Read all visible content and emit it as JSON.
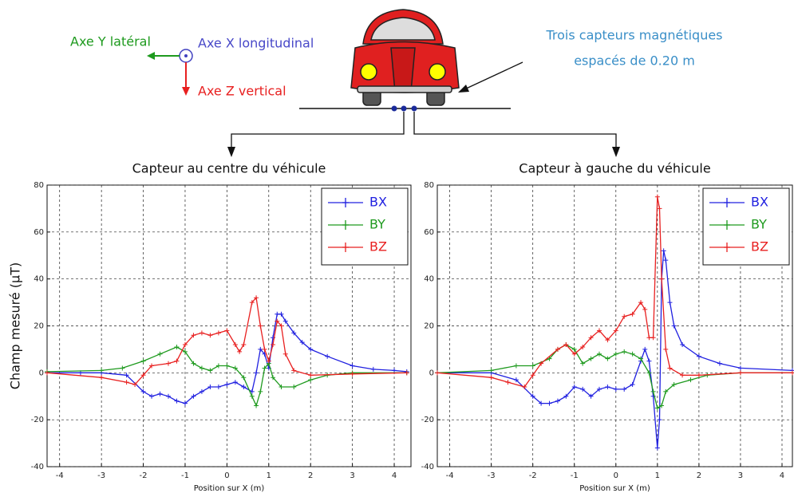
{
  "diagram": {
    "axis_y": "Axe Y latéral",
    "axis_x": "Axe X longitudinal",
    "axis_z": "Axe Z vertical",
    "note_line1": "Trois capteurs magnétiques",
    "note_line2": "espacés de 0.20 m"
  },
  "chart_data": [
    {
      "type": "line",
      "title": "Capteur au centre du véhicule",
      "x_label": "Position sur X (m)",
      "y_label": "Champ mesuré (µT)",
      "xlim": [
        -4.3,
        4.4
      ],
      "xticks": [
        -4,
        -3,
        -2,
        -1,
        0,
        1,
        2,
        3,
        4
      ],
      "ylim": [
        -40,
        80
      ],
      "yticks": [
        -40,
        -20,
        0,
        20,
        40,
        60,
        80
      ],
      "grid": true,
      "legend": "upper right",
      "series": [
        {
          "name": "BX",
          "color": "#2020e0",
          "x": [
            -4.3,
            -3.5,
            -3,
            -2.4,
            -2,
            -1.8,
            -1.6,
            -1.4,
            -1.2,
            -1,
            -0.8,
            -0.6,
            -0.4,
            -0.2,
            0,
            0.2,
            0.4,
            0.6,
            0.7,
            0.8,
            0.9,
            1,
            1.1,
            1.2,
            1.3,
            1.4,
            1.6,
            1.8,
            2,
            2.4,
            3,
            3.5,
            4,
            4.3
          ],
          "values": [
            0,
            0,
            0,
            -1,
            -8,
            -10,
            -9,
            -10,
            -12,
            -13,
            -10,
            -8,
            -6,
            -6,
            -5,
            -4,
            -6,
            -8,
            0,
            10,
            8,
            2,
            15,
            25,
            25,
            22,
            17,
            13,
            10,
            7,
            3,
            1.5,
            1,
            0.5
          ]
        },
        {
          "name": "BY",
          "color": "#1e9a1e",
          "x": [
            -4.3,
            -3,
            -2.5,
            -2,
            -1.6,
            -1.2,
            -1,
            -0.8,
            -0.6,
            -0.4,
            -0.2,
            0,
            0.2,
            0.4,
            0.6,
            0.7,
            0.8,
            0.9,
            1,
            1.1,
            1.3,
            1.6,
            2,
            2.4,
            3,
            4.3
          ],
          "values": [
            0.5,
            1,
            2,
            5,
            8,
            11,
            9,
            4,
            2,
            1,
            3,
            3,
            2,
            -2,
            -10,
            -14,
            -8,
            2,
            4,
            -2,
            -6,
            -6,
            -3,
            -1,
            0,
            0
          ]
        },
        {
          "name": "BZ",
          "color": "#e82020",
          "x": [
            -4.3,
            -3,
            -2.4,
            -2.2,
            -2,
            -1.8,
            -1.4,
            -1.2,
            -1,
            -0.8,
            -0.6,
            -0.4,
            -0.2,
            0,
            0.2,
            0.3,
            0.4,
            0.6,
            0.7,
            0.8,
            0.9,
            1,
            1.1,
            1.2,
            1.3,
            1.4,
            1.6,
            2,
            3,
            4.3
          ],
          "values": [
            0,
            -2,
            -4,
            -5,
            -1,
            3,
            4,
            5,
            12,
            16,
            17,
            16,
            17,
            18,
            12,
            9,
            12,
            30,
            32,
            20,
            10,
            5,
            12,
            22,
            20,
            8,
            1,
            -1,
            -0.5,
            0
          ]
        }
      ]
    },
    {
      "type": "line",
      "title": "Capteur à gauche du véhicule",
      "x_label": "Position sur X (m)",
      "xlim": [
        -4.3,
        4.25
      ],
      "xticks": [
        -4,
        -3,
        -2,
        -1,
        0,
        1,
        2,
        3,
        4
      ],
      "ylim": [
        -40,
        80
      ],
      "yticks": [
        -40,
        -20,
        0,
        20,
        40,
        60,
        80
      ],
      "grid": true,
      "legend": "upper right",
      "series": [
        {
          "name": "BX",
          "color": "#2020e0",
          "x": [
            -4.3,
            -3,
            -2.4,
            -2,
            -1.8,
            -1.6,
            -1.4,
            -1.2,
            -1,
            -0.8,
            -0.6,
            -0.4,
            -0.2,
            0,
            0.2,
            0.4,
            0.6,
            0.7,
            0.8,
            0.9,
            1,
            1.05,
            1.1,
            1.15,
            1.2,
            1.3,
            1.4,
            1.6,
            2,
            2.5,
            3,
            4.25
          ],
          "values": [
            0,
            0,
            -3,
            -10,
            -13,
            -13,
            -12,
            -10,
            -6,
            -7,
            -10,
            -7,
            -6,
            -7,
            -7,
            -5,
            5,
            10,
            5,
            -10,
            -32,
            -20,
            40,
            52,
            48,
            30,
            20,
            12,
            7,
            4,
            2,
            1
          ]
        },
        {
          "name": "BY",
          "color": "#1e9a1e",
          "x": [
            -4.3,
            -3,
            -2.4,
            -2,
            -1.6,
            -1.4,
            -1.2,
            -1,
            -0.8,
            -0.6,
            -0.4,
            -0.2,
            0,
            0.2,
            0.4,
            0.6,
            0.8,
            0.9,
            1,
            1.1,
            1.2,
            1.4,
            1.8,
            2.2,
            3,
            4.25
          ],
          "values": [
            0,
            1,
            3,
            3,
            6,
            10,
            12,
            10,
            4,
            6,
            8,
            6,
            8,
            9,
            8,
            6,
            0,
            -8,
            -15,
            -14,
            -8,
            -5,
            -3,
            -1,
            0,
            0
          ]
        },
        {
          "name": "BZ",
          "color": "#e82020",
          "x": [
            -4.3,
            -3,
            -2.6,
            -2.2,
            -2,
            -1.8,
            -1.4,
            -1.2,
            -1,
            -0.8,
            -0.6,
            -0.4,
            -0.2,
            0,
            0.2,
            0.4,
            0.6,
            0.7,
            0.8,
            0.9,
            1,
            1.05,
            1.1,
            1.2,
            1.3,
            1.6,
            2,
            3,
            4.25
          ],
          "values": [
            0,
            -2,
            -4,
            -6,
            -1,
            4,
            10,
            12,
            8,
            11,
            15,
            18,
            14,
            18,
            24,
            25,
            30,
            27,
            15,
            15,
            75,
            70,
            40,
            10,
            2,
            -1,
            -1,
            0,
            0
          ]
        }
      ]
    }
  ]
}
